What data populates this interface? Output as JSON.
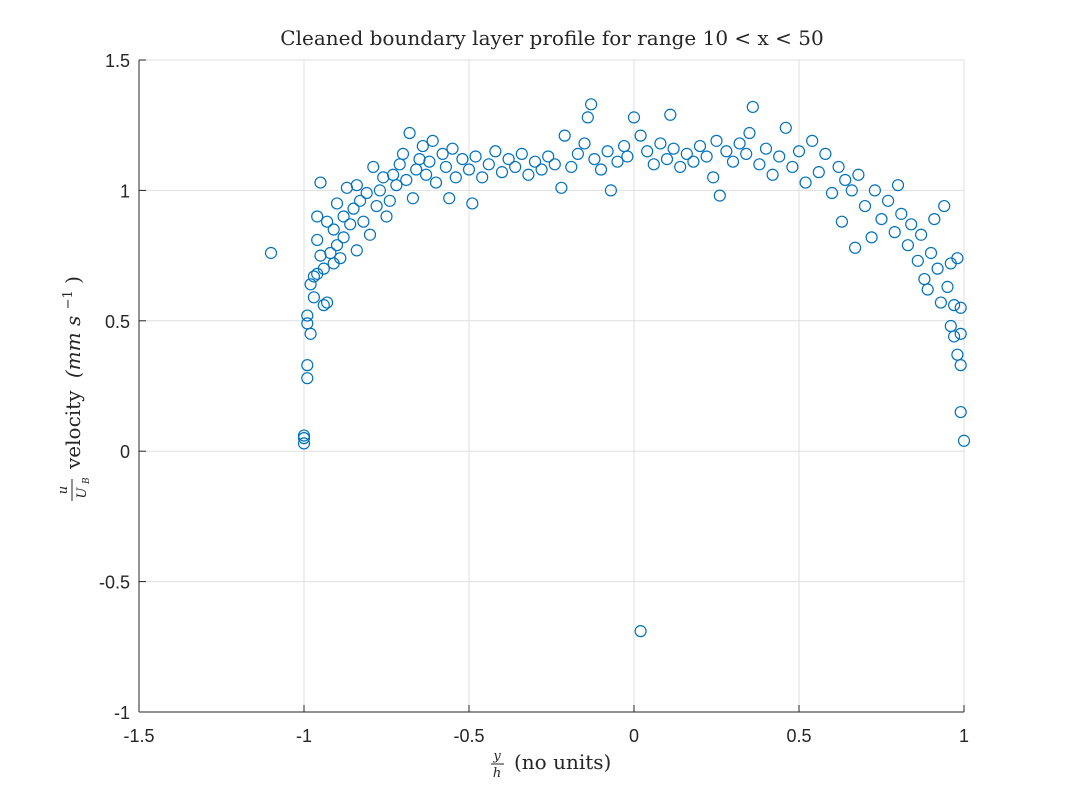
{
  "chart_data": {
    "type": "scatter",
    "title": "Cleaned boundary layer profile for range 10 < x < 50",
    "xlabel": {
      "fraction_num": "y",
      "fraction_den": "h",
      "text": "(no units)"
    },
    "ylabel": {
      "fraction_num": "u",
      "fraction_den": "U",
      "fraction_den_sub": "B",
      "text": "velocity",
      "units": "(mm s",
      "units_sup": "−1",
      "units_close": ")"
    },
    "xlim": [
      -1.5,
      1
    ],
    "ylim": [
      -1,
      1.5
    ],
    "xticks": [
      -1.5,
      -1,
      -0.5,
      0,
      0.5,
      1
    ],
    "xtick_labels": [
      "-1.5",
      "-1",
      "-0.5",
      "0",
      "0.5",
      "1"
    ],
    "yticks": [
      -1,
      -0.5,
      0,
      0.5,
      1,
      1.5
    ],
    "ytick_labels": [
      "-1",
      "-0.5",
      "0",
      "0.5",
      "1",
      "1.5"
    ],
    "grid": true,
    "marker": "open-circle",
    "color": "#0072BD",
    "series": [
      {
        "points": [
          [
            -1.1,
            0.76
          ],
          [
            -1.0,
            0.03
          ],
          [
            -1.0,
            0.05
          ],
          [
            -1.0,
            0.06
          ],
          [
            -0.99,
            0.28
          ],
          [
            -0.99,
            0.33
          ],
          [
            -0.99,
            0.49
          ],
          [
            -0.99,
            0.52
          ],
          [
            -0.98,
            0.45
          ],
          [
            -0.98,
            0.64
          ],
          [
            -0.97,
            0.67
          ],
          [
            -0.97,
            0.59
          ],
          [
            -0.96,
            0.68
          ],
          [
            -0.96,
            0.81
          ],
          [
            -0.96,
            0.9
          ],
          [
            -0.95,
            1.03
          ],
          [
            -0.95,
            0.75
          ],
          [
            -0.94,
            0.7
          ],
          [
            -0.94,
            0.56
          ],
          [
            -0.93,
            0.57
          ],
          [
            -0.93,
            0.88
          ],
          [
            -0.92,
            0.76
          ],
          [
            -0.91,
            0.72
          ],
          [
            -0.91,
            0.85
          ],
          [
            -0.9,
            0.79
          ],
          [
            -0.9,
            0.95
          ],
          [
            -0.89,
            0.74
          ],
          [
            -0.88,
            0.82
          ],
          [
            -0.88,
            0.9
          ],
          [
            -0.87,
            1.01
          ],
          [
            -0.86,
            0.87
          ],
          [
            -0.85,
            0.93
          ],
          [
            -0.84,
            0.77
          ],
          [
            -0.84,
            1.02
          ],
          [
            -0.83,
            0.96
          ],
          [
            -0.82,
            0.88
          ],
          [
            -0.81,
            0.99
          ],
          [
            -0.8,
            0.83
          ],
          [
            -0.79,
            1.09
          ],
          [
            -0.78,
            0.94
          ],
          [
            -0.77,
            1.0
          ],
          [
            -0.76,
            1.05
          ],
          [
            -0.75,
            0.9
          ],
          [
            -0.74,
            0.96
          ],
          [
            -0.73,
            1.06
          ],
          [
            -0.72,
            1.02
          ],
          [
            -0.71,
            1.1
          ],
          [
            -0.7,
            1.14
          ],
          [
            -0.69,
            1.04
          ],
          [
            -0.68,
            1.22
          ],
          [
            -0.67,
            0.97
          ],
          [
            -0.66,
            1.08
          ],
          [
            -0.65,
            1.12
          ],
          [
            -0.64,
            1.17
          ],
          [
            -0.63,
            1.06
          ],
          [
            -0.62,
            1.11
          ],
          [
            -0.61,
            1.19
          ],
          [
            -0.6,
            1.03
          ],
          [
            -0.58,
            1.14
          ],
          [
            -0.57,
            1.09
          ],
          [
            -0.56,
            0.97
          ],
          [
            -0.55,
            1.16
          ],
          [
            -0.54,
            1.05
          ],
          [
            -0.52,
            1.12
          ],
          [
            -0.5,
            1.08
          ],
          [
            -0.49,
            0.95
          ],
          [
            -0.48,
            1.13
          ],
          [
            -0.46,
            1.05
          ],
          [
            -0.44,
            1.1
          ],
          [
            -0.42,
            1.15
          ],
          [
            -0.4,
            1.07
          ],
          [
            -0.38,
            1.12
          ],
          [
            -0.36,
            1.09
          ],
          [
            -0.34,
            1.14
          ],
          [
            -0.32,
            1.06
          ],
          [
            -0.3,
            1.11
          ],
          [
            -0.28,
            1.08
          ],
          [
            -0.26,
            1.13
          ],
          [
            -0.24,
            1.1
          ],
          [
            -0.22,
            1.01
          ],
          [
            -0.21,
            1.21
          ],
          [
            -0.19,
            1.09
          ],
          [
            -0.17,
            1.14
          ],
          [
            -0.15,
            1.18
          ],
          [
            -0.14,
            1.28
          ],
          [
            -0.13,
            1.33
          ],
          [
            -0.12,
            1.12
          ],
          [
            -0.1,
            1.08
          ],
          [
            -0.08,
            1.15
          ],
          [
            -0.07,
            1.0
          ],
          [
            -0.05,
            1.11
          ],
          [
            -0.03,
            1.17
          ],
          [
            -0.02,
            1.13
          ],
          [
            0.0,
            1.28
          ],
          [
            0.02,
            1.21
          ],
          [
            0.02,
            -0.69
          ],
          [
            0.04,
            1.15
          ],
          [
            0.06,
            1.1
          ],
          [
            0.08,
            1.18
          ],
          [
            0.1,
            1.12
          ],
          [
            0.11,
            1.29
          ],
          [
            0.12,
            1.16
          ],
          [
            0.14,
            1.09
          ],
          [
            0.16,
            1.14
          ],
          [
            0.18,
            1.11
          ],
          [
            0.2,
            1.17
          ],
          [
            0.22,
            1.13
          ],
          [
            0.24,
            1.05
          ],
          [
            0.25,
            1.19
          ],
          [
            0.26,
            0.98
          ],
          [
            0.28,
            1.15
          ],
          [
            0.3,
            1.11
          ],
          [
            0.32,
            1.18
          ],
          [
            0.34,
            1.14
          ],
          [
            0.35,
            1.22
          ],
          [
            0.36,
            1.32
          ],
          [
            0.38,
            1.1
          ],
          [
            0.4,
            1.16
          ],
          [
            0.42,
            1.06
          ],
          [
            0.44,
            1.13
          ],
          [
            0.46,
            1.24
          ],
          [
            0.48,
            1.09
          ],
          [
            0.5,
            1.15
          ],
          [
            0.52,
            1.03
          ],
          [
            0.54,
            1.19
          ],
          [
            0.56,
            1.07
          ],
          [
            0.58,
            1.14
          ],
          [
            0.6,
            0.99
          ],
          [
            0.62,
            1.09
          ],
          [
            0.63,
            0.88
          ],
          [
            0.64,
            1.04
          ],
          [
            0.66,
            1.0
          ],
          [
            0.67,
            0.78
          ],
          [
            0.68,
            1.06
          ],
          [
            0.7,
            0.94
          ],
          [
            0.72,
            0.82
          ],
          [
            0.73,
            1.0
          ],
          [
            0.75,
            0.89
          ],
          [
            0.77,
            0.96
          ],
          [
            0.79,
            0.84
          ],
          [
            0.8,
            1.02
          ],
          [
            0.81,
            0.91
          ],
          [
            0.83,
            0.79
          ],
          [
            0.84,
            0.87
          ],
          [
            0.86,
            0.73
          ],
          [
            0.87,
            0.83
          ],
          [
            0.88,
            0.66
          ],
          [
            0.89,
            0.62
          ],
          [
            0.9,
            0.76
          ],
          [
            0.91,
            0.89
          ],
          [
            0.92,
            0.7
          ],
          [
            0.93,
            0.57
          ],
          [
            0.94,
            0.94
          ],
          [
            0.95,
            0.63
          ],
          [
            0.96,
            0.48
          ],
          [
            0.96,
            0.72
          ],
          [
            0.97,
            0.44
          ],
          [
            0.97,
            0.56
          ],
          [
            0.98,
            0.37
          ],
          [
            0.98,
            0.74
          ],
          [
            0.99,
            0.33
          ],
          [
            0.99,
            0.45
          ],
          [
            0.99,
            0.15
          ],
          [
            1.0,
            0.04
          ],
          [
            0.99,
            0.55
          ]
        ]
      }
    ]
  }
}
